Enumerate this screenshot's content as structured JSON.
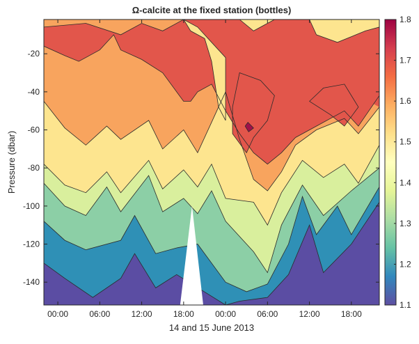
{
  "chart_data": {
    "type": "filled-contour",
    "title": "Ω-calcite at the fixed station (bottles)",
    "xlabel": "14 and 15 June 2013",
    "ylabel": "Pressure (dbar)",
    "x_ticks": [
      0,
      6,
      12,
      18,
      24,
      30,
      36,
      42
    ],
    "x_tick_labels": [
      "00:00",
      "06:00",
      "12:00",
      "18:00",
      "00:00",
      "06:00",
      "12:00",
      "18:00"
    ],
    "xlim": [
      -2,
      46
    ],
    "ylim": [
      -152,
      -2
    ],
    "y_ticks": [
      -20,
      -40,
      -60,
      -80,
      -100,
      -120,
      -140
    ],
    "y_tick_labels": [
      "-20",
      "-40",
      "-60",
      "-80",
      "-100",
      "-120",
      "-140"
    ],
    "colorbar": {
      "min": 1.1,
      "max": 1.8,
      "ticks": [
        1.1,
        1.2,
        1.3,
        1.4,
        1.5,
        1.6,
        1.7,
        1.8
      ],
      "tick_labels": [
        "1.1",
        "1.2",
        "1.3",
        "1.4",
        "1.5",
        "1.6",
        "1.7",
        "1.8"
      ]
    },
    "colors": {
      "1.75": "#a0104a",
      "1.65": "#e2564b",
      "1.55": "#f8a45e",
      "1.45": "#fde58f",
      "1.35": "#d9ef9d",
      "1.25": "#8ccfa6",
      "1.15": "#2f90b6",
      "1.05": "#5b4da3"
    },
    "colormap": [
      "#5e4fa2",
      "#3288bd",
      "#66c2a5",
      "#abdda4",
      "#e6f598",
      "#ffffbf",
      "#fee08b",
      "#fdae61",
      "#f46d43",
      "#d53e4f",
      "#9e0142"
    ],
    "contour_levels": [
      {
        "value": 1.2,
        "points": [
          [
            -2,
            -130
          ],
          [
            1,
            -138
          ],
          [
            5,
            -148
          ],
          [
            9,
            -138
          ],
          [
            11,
            -125
          ],
          [
            14,
            -143
          ],
          [
            17,
            -136
          ],
          [
            24,
            -152
          ],
          [
            26,
            -150
          ],
          [
            30,
            -148
          ],
          [
            33,
            -136
          ],
          [
            36,
            -110
          ],
          [
            38,
            -135
          ],
          [
            42,
            -120
          ],
          [
            46,
            -98
          ]
        ]
      },
      {
        "value": 1.3,
        "points": [
          [
            -2,
            -108
          ],
          [
            1,
            -118
          ],
          [
            4,
            -123
          ],
          [
            9,
            -118
          ],
          [
            11,
            -105
          ],
          [
            14,
            -125
          ],
          [
            17,
            -122
          ],
          [
            20,
            -120
          ],
          [
            24,
            -140
          ],
          [
            27,
            -145
          ],
          [
            30,
            -141
          ],
          [
            33,
            -120
          ],
          [
            35,
            -95
          ],
          [
            37,
            -115
          ],
          [
            40,
            -100
          ],
          [
            42,
            -115
          ],
          [
            46,
            -90
          ]
        ]
      },
      {
        "value": 1.4,
        "points": [
          [
            -2,
            -88
          ],
          [
            1,
            -100
          ],
          [
            4,
            -105
          ],
          [
            7,
            -90
          ],
          [
            9,
            -103
          ],
          [
            13,
            -84
          ],
          [
            15,
            -103
          ],
          [
            18,
            -96
          ],
          [
            20,
            -104
          ],
          [
            22,
            -92
          ],
          [
            24,
            -108
          ],
          [
            28,
            -124
          ],
          [
            30,
            -135
          ],
          [
            32,
            -110
          ],
          [
            35,
            -89
          ],
          [
            38,
            -105
          ],
          [
            42,
            -92
          ],
          [
            46,
            -80
          ]
        ]
      },
      {
        "value": 1.5,
        "points": [
          [
            -2,
            -78
          ],
          [
            1,
            -89
          ],
          [
            4,
            -93
          ],
          [
            7,
            -82
          ],
          [
            9,
            -93
          ],
          [
            13,
            -76
          ],
          [
            15,
            -91
          ],
          [
            18,
            -81
          ],
          [
            20,
            -90
          ],
          [
            22,
            -78
          ],
          [
            24,
            -96
          ],
          [
            28,
            -98
          ],
          [
            30,
            -110
          ],
          [
            32,
            -93
          ],
          [
            35,
            -76
          ],
          [
            38,
            -85
          ],
          [
            41,
            -78
          ],
          [
            43,
            -88
          ],
          [
            46,
            -68
          ]
        ]
      },
      {
        "value": 1.6,
        "points": [
          [
            -2,
            -45
          ],
          [
            1,
            -59
          ],
          [
            4,
            -68
          ],
          [
            7,
            -58
          ],
          [
            9,
            -65
          ],
          [
            13,
            -55
          ],
          [
            15,
            -70
          ],
          [
            18,
            -60
          ],
          [
            20,
            -72
          ],
          [
            22,
            -56
          ],
          [
            23,
            -48
          ],
          [
            24,
            -40
          ],
          [
            26,
            -65
          ],
          [
            28,
            -86
          ],
          [
            30,
            -92
          ],
          [
            32,
            -82
          ],
          [
            34,
            -68
          ],
          [
            37,
            -60
          ],
          [
            41,
            -54
          ],
          [
            43,
            -62
          ],
          [
            46,
            -48
          ]
        ]
      },
      {
        "value": 1.7,
        "points": [
          [
            -2,
            -16
          ],
          [
            1,
            -21
          ],
          [
            3,
            -24
          ],
          [
            6,
            -18
          ],
          [
            8,
            -10
          ],
          [
            9,
            -18
          ],
          [
            12,
            -23
          ],
          [
            15,
            -30
          ],
          [
            18,
            -45
          ],
          [
            19,
            -45
          ],
          [
            20,
            -40
          ],
          [
            22,
            -36
          ],
          [
            24,
            -50
          ],
          [
            26,
            -62
          ],
          [
            28,
            -72
          ],
          [
            30,
            -78
          ],
          [
            32,
            -72
          ],
          [
            34,
            -64
          ],
          [
            37,
            -58
          ],
          [
            41,
            -50
          ],
          [
            43,
            -58
          ],
          [
            46,
            -42
          ]
        ]
      }
    ]
  }
}
